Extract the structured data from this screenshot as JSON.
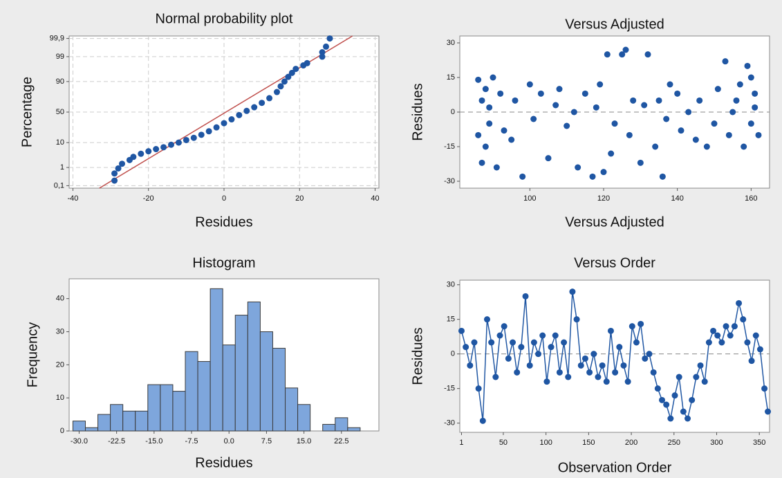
{
  "chart_data": [
    {
      "type": "scatter",
      "title": "Normal probability plot",
      "x_label": "Residues",
      "y_label": "Percentage",
      "y_scale": "normal-probability",
      "grid": true,
      "color": "#1f56a3",
      "xlim": [
        -41,
        41
      ],
      "xticks": [
        -40,
        -20,
        0,
        20,
        40
      ],
      "ylim": [
        0.07,
        99.93
      ],
      "yticks": [
        {
          "value": 0.1,
          "label": "0,1"
        },
        1,
        10,
        50,
        90,
        99,
        {
          "value": 99.9,
          "label": "99,9"
        }
      ],
      "x": [
        -29,
        -29,
        -28,
        -27,
        -25,
        -24,
        -22,
        -20,
        -18,
        -16,
        -14,
        -12,
        -10,
        -8,
        -6,
        -4,
        -2,
        0,
        2,
        4,
        6,
        8,
        10,
        12,
        14,
        15,
        16,
        17,
        18,
        19,
        21,
        22,
        26,
        26,
        27,
        28
      ],
      "values": [
        0.2,
        0.5,
        0.9,
        1.5,
        2.2,
        3,
        4,
        5,
        6,
        7,
        8.5,
        10,
        12,
        14,
        17,
        21,
        26,
        32,
        38,
        45,
        52,
        58,
        65,
        72,
        80,
        86,
        90,
        93,
        95,
        96.5,
        97.5,
        98,
        99,
        99.4,
        99.7,
        99.9
      ],
      "fit_line": {
        "x": [
          -33,
          34
        ],
        "y": [
          0.07,
          99.93
        ],
        "color": "#c0504d"
      }
    },
    {
      "type": "scatter",
      "title": "Versus Adjusted",
      "x_label": "Versus Adjusted",
      "y_label": "Residues",
      "grid": false,
      "color": "#1f56a3",
      "reference_line": 0,
      "xlim": [
        81,
        165
      ],
      "xticks": [
        100,
        120,
        140,
        160
      ],
      "ylim": [
        -33,
        33
      ],
      "yticks": [
        -30,
        -15,
        0,
        15,
        30
      ],
      "x": [
        86,
        86,
        87,
        87,
        88,
        88,
        89,
        89,
        90,
        91,
        92,
        93,
        95,
        96,
        98,
        100,
        101,
        103,
        105,
        107,
        108,
        110,
        112,
        113,
        115,
        117,
        118,
        119,
        120,
        121,
        122,
        123,
        125,
        126,
        127,
        128,
        130,
        131,
        132,
        134,
        135,
        136,
        137,
        138,
        140,
        141,
        143,
        145,
        146,
        148,
        150,
        151,
        153,
        154,
        155,
        156,
        157,
        158,
        159,
        160,
        160,
        161,
        161,
        162
      ],
      "values": [
        14,
        -10,
        5,
        -22,
        10,
        -15,
        2,
        -5,
        15,
        -24,
        8,
        -8,
        -12,
        5,
        -28,
        12,
        -3,
        8,
        -20,
        3,
        10,
        -6,
        0,
        -24,
        8,
        -28,
        2,
        12,
        -26,
        25,
        -18,
        -5,
        25,
        27,
        -10,
        5,
        -22,
        3,
        25,
        -15,
        5,
        -28,
        -3,
        12,
        8,
        -8,
        0,
        -12,
        5,
        -15,
        -5,
        10,
        22,
        -10,
        0,
        5,
        12,
        -15,
        20,
        15,
        -5,
        2,
        8,
        -10
      ]
    },
    {
      "type": "histogram",
      "title": "Histogram",
      "x_label": "Residues",
      "y_label": "Frequency",
      "color": "#7ea6dc",
      "xlim": [
        -32,
        30
      ],
      "xticks": [
        {
          "value": -30,
          "label": "-30.0"
        },
        -22.5,
        {
          "value": -15,
          "label": "-15.0"
        },
        -7.5,
        {
          "value": 0,
          "label": "0.0"
        },
        7.5,
        {
          "value": 15,
          "label": "15.0"
        },
        22.5
      ],
      "ylim": [
        0,
        46
      ],
      "yticks": [
        0,
        10,
        20,
        30,
        40
      ],
      "bins": [
        -31.25,
        -28.75,
        -26.25,
        -23.75,
        -21.25,
        -18.75,
        -16.25,
        -13.75,
        -11.25,
        -8.75,
        -6.25,
        -3.75,
        -1.25,
        1.25,
        3.75,
        6.25,
        8.75,
        11.25,
        13.75,
        16.25,
        18.75,
        21.25,
        23.75,
        26.25
      ],
      "values": [
        3,
        1,
        5,
        8,
        6,
        6,
        14,
        14,
        12,
        24,
        21,
        43,
        26,
        35,
        39,
        30,
        25,
        13,
        8,
        0,
        2,
        4,
        1
      ]
    },
    {
      "type": "line",
      "title": "Versus Order",
      "x_label": "Observation Order",
      "y_label": "Residues",
      "color": "#1f56a3",
      "reference_line": 0,
      "xlim": [
        -1,
        362
      ],
      "xticks": [
        1,
        50,
        100,
        150,
        200,
        250,
        300,
        350
      ],
      "ylim": [
        -34,
        32
      ],
      "yticks": [
        -30,
        -15,
        0,
        15,
        30
      ],
      "x": [
        1,
        6,
        11,
        16,
        21,
        26,
        31,
        36,
        41,
        46,
        51,
        56,
        61,
        66,
        71,
        76,
        81,
        86,
        91,
        96,
        101,
        106,
        111,
        116,
        121,
        126,
        131,
        136,
        141,
        146,
        151,
        156,
        161,
        166,
        171,
        176,
        181,
        186,
        191,
        196,
        201,
        206,
        211,
        216,
        221,
        226,
        231,
        236,
        241,
        246,
        251,
        256,
        261,
        266,
        271,
        276,
        281,
        286,
        291,
        296,
        301,
        306,
        311,
        316,
        321,
        326,
        331,
        336,
        341,
        346,
        351,
        356,
        360
      ],
      "values": [
        10,
        3,
        -5,
        5,
        -15,
        -29,
        15,
        5,
        -10,
        8,
        12,
        -2,
        5,
        -8,
        3,
        25,
        -5,
        5,
        0,
        8,
        -12,
        3,
        8,
        -8,
        5,
        -10,
        27,
        15,
        -5,
        -2,
        -8,
        0,
        -10,
        -5,
        -12,
        10,
        -8,
        3,
        -5,
        -12,
        12,
        5,
        13,
        -2,
        0,
        -8,
        -15,
        -20,
        -22,
        -28,
        -18,
        -10,
        -25,
        -28,
        -20,
        -10,
        -5,
        -12,
        5,
        10,
        8,
        5,
        12,
        8,
        12,
        22,
        15,
        5,
        -3,
        8,
        2,
        -15,
        -25
      ]
    }
  ]
}
